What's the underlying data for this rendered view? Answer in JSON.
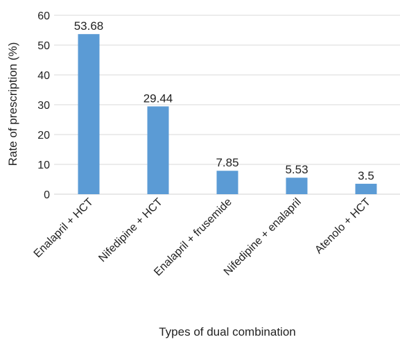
{
  "chart_data": {
    "type": "bar",
    "categories": [
      "Enalapril + HCT",
      "Nifedipine + HCT",
      "Enalapril + frusemide",
      "Nifedipine + enalapril",
      "Atenolo + HCT"
    ],
    "values": [
      53.68,
      29.44,
      7.85,
      5.53,
      3.5
    ],
    "data_labels": [
      "53.68",
      "29.44",
      "7.85",
      "5.53",
      "3.5"
    ],
    "title": "",
    "xlabel": "Types of dual combination",
    "ylabel": "Rate of prescription (%)",
    "ylim": [
      0,
      60
    ],
    "yticks": [
      0,
      10,
      20,
      30,
      40,
      50,
      60
    ],
    "grid": true,
    "legend": "none",
    "bar_color": "#5b9bd5",
    "grid_color": "#d9d9d9"
  }
}
